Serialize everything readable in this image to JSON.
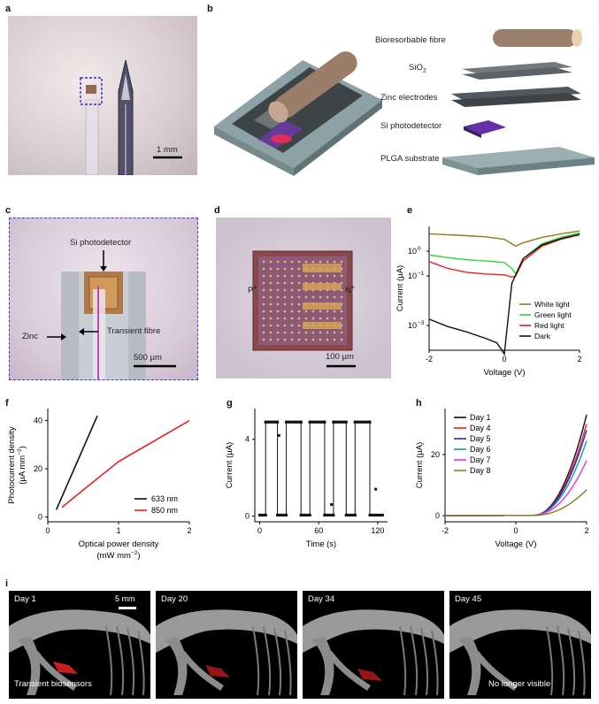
{
  "panels": {
    "a": {
      "label": "a",
      "scale": "1 mm"
    },
    "b": {
      "label": "b",
      "layers": [
        "Bioresorbable fibre",
        "SiO",
        "Zinc electrodes",
        "Si photodetector",
        "PLGA substrate"
      ],
      "sio2_sub": "2"
    },
    "c": {
      "label": "c",
      "si_label": "Si photodetector",
      "zinc": "Zinc",
      "fibre": "Transient fibre",
      "scale": "500 µm"
    },
    "d": {
      "label": "d",
      "p": "P",
      "n": "N",
      "plus": "+",
      "scale": "100 µm"
    },
    "e": {
      "label": "e"
    },
    "f": {
      "label": "f"
    },
    "g": {
      "label": "g"
    },
    "h": {
      "label": "h"
    },
    "i": {
      "label": "i",
      "tiles": [
        {
          "day": "Day 1",
          "scale": "5 mm",
          "caption": "Transient biosensors"
        },
        {
          "day": "Day 20",
          "caption": ""
        },
        {
          "day": "Day 34",
          "caption": ""
        },
        {
          "day": "Day 45",
          "caption": "No longer visible"
        }
      ]
    }
  },
  "chart_data": [
    {
      "id": "e",
      "type": "line",
      "xlabel": "Voltage (V)",
      "ylabel": "Current (µA)",
      "xlim": [
        -2,
        2
      ],
      "ylim_log10": [
        -4,
        1
      ],
      "y_scale": "log",
      "xticks": [
        -2,
        0,
        2
      ],
      "yticks": [
        {
          "v": -3,
          "t": "10"
        },
        {
          "v": -1,
          "t": "10"
        },
        {
          "v": 0,
          "t": "10"
        }
      ],
      "ytick_exp": [
        "−3",
        "−1",
        "0"
      ],
      "legend": "bottom-right",
      "series": [
        {
          "name": "White light",
          "color": "#8b7a1a",
          "x": [
            -2,
            -1.5,
            -1,
            -0.5,
            0,
            0.2,
            0.3,
            0.5,
            1,
            1.5,
            2
          ],
          "y": [
            5,
            4.6,
            4.2,
            3.8,
            3.0,
            2.0,
            1.6,
            2.2,
            3.6,
            5,
            6.5
          ]
        },
        {
          "name": "Green light",
          "color": "#2ed82e",
          "x": [
            -2,
            -1.5,
            -1,
            -0.5,
            0,
            0.2,
            0.3,
            0.5,
            1,
            1.5,
            2
          ],
          "y": [
            0.7,
            0.55,
            0.45,
            0.4,
            0.35,
            0.2,
            0.12,
            0.5,
            2.0,
            3.6,
            5.5
          ]
        },
        {
          "name": "Red light",
          "color": "#ee2020",
          "x": [
            -2,
            -1.5,
            -1,
            -0.5,
            0,
            0.2,
            0.3,
            0.5,
            1,
            1.5,
            2
          ],
          "y": [
            0.38,
            0.2,
            0.14,
            0.12,
            0.11,
            0.09,
            0.1,
            0.4,
            1.6,
            3.0,
            4.6
          ]
        },
        {
          "name": "Dark",
          "color": "#111111",
          "x": [
            -2,
            -1.5,
            -1,
            -0.5,
            -0.2,
            0,
            0.2,
            0.5,
            1,
            1.5,
            2
          ],
          "y": [
            0.0018,
            0.0009,
            0.00055,
            0.0003,
            0.0002,
            7e-05,
            0.05,
            0.5,
            1.8,
            3.2,
            4.8
          ]
        }
      ]
    },
    {
      "id": "f",
      "type": "line",
      "xlabel": "Optical power density",
      "xlabel2": "(mW mm",
      "xlabel2_sup": "−2",
      "xlabel2_end": ")",
      "ylabel": "Photocurrent density",
      "ylabel2": "(µA mm",
      "ylabel2_sup": "−2",
      "ylabel2_end": ")",
      "xlim": [
        0,
        2
      ],
      "ylim": [
        -2,
        45
      ],
      "xticks": [
        0,
        1,
        2
      ],
      "yticks": [
        0,
        20,
        40
      ],
      "legend": "bottom-right",
      "series": [
        {
          "name": "633 nm",
          "color": "#111111",
          "x": [
            0.12,
            0.7
          ],
          "y": [
            3,
            42
          ]
        },
        {
          "name": "850 nm",
          "color": "#e82020",
          "x": [
            0.2,
            0.45,
            1.0,
            2.0
          ],
          "y": [
            4,
            10,
            23,
            40
          ]
        }
      ]
    },
    {
      "id": "g",
      "type": "line",
      "xlabel": "Time (s)",
      "ylabel": "Current (µA)",
      "xlim": [
        -5,
        130
      ],
      "ylim": [
        -0.3,
        5.6
      ],
      "xticks": [
        0,
        60,
        120
      ],
      "yticks": [
        0,
        4
      ],
      "on_value": 4.9,
      "off_value": 0.05,
      "periods": [
        [
          6,
          18
        ],
        [
          27,
          42
        ],
        [
          51,
          66
        ],
        [
          75,
          88
        ],
        [
          97,
          112
        ]
      ],
      "outliers": [
        [
          19.5,
          4.2
        ],
        [
          73,
          0.6
        ],
        [
          118,
          1.4
        ]
      ],
      "series": [
        {
          "name": "",
          "color": "#111111"
        }
      ]
    },
    {
      "id": "h",
      "type": "line",
      "xlabel": "Voltage (V)",
      "ylabel": "Current (µA)",
      "xlim": [
        -2,
        2
      ],
      "ylim": [
        -2,
        35
      ],
      "xticks": [
        -2,
        0,
        2
      ],
      "yticks": [
        0,
        20
      ],
      "legend": "top-left",
      "series": [
        {
          "name": "Day 1",
          "color": "#111111",
          "vmax": 33
        },
        {
          "name": "Day 4",
          "color": "#ee2020",
          "vmax": 30
        },
        {
          "name": "Day 5",
          "color": "#2323d6",
          "vmax": 28
        },
        {
          "name": "Day 6",
          "color": "#1a9a9a",
          "vmax": 24.5
        },
        {
          "name": "Day 7",
          "color": "#ee33dd",
          "vmax": 18
        },
        {
          "name": "Day 8",
          "color": "#8b7a1a",
          "vmax": 8.5
        }
      ]
    }
  ]
}
